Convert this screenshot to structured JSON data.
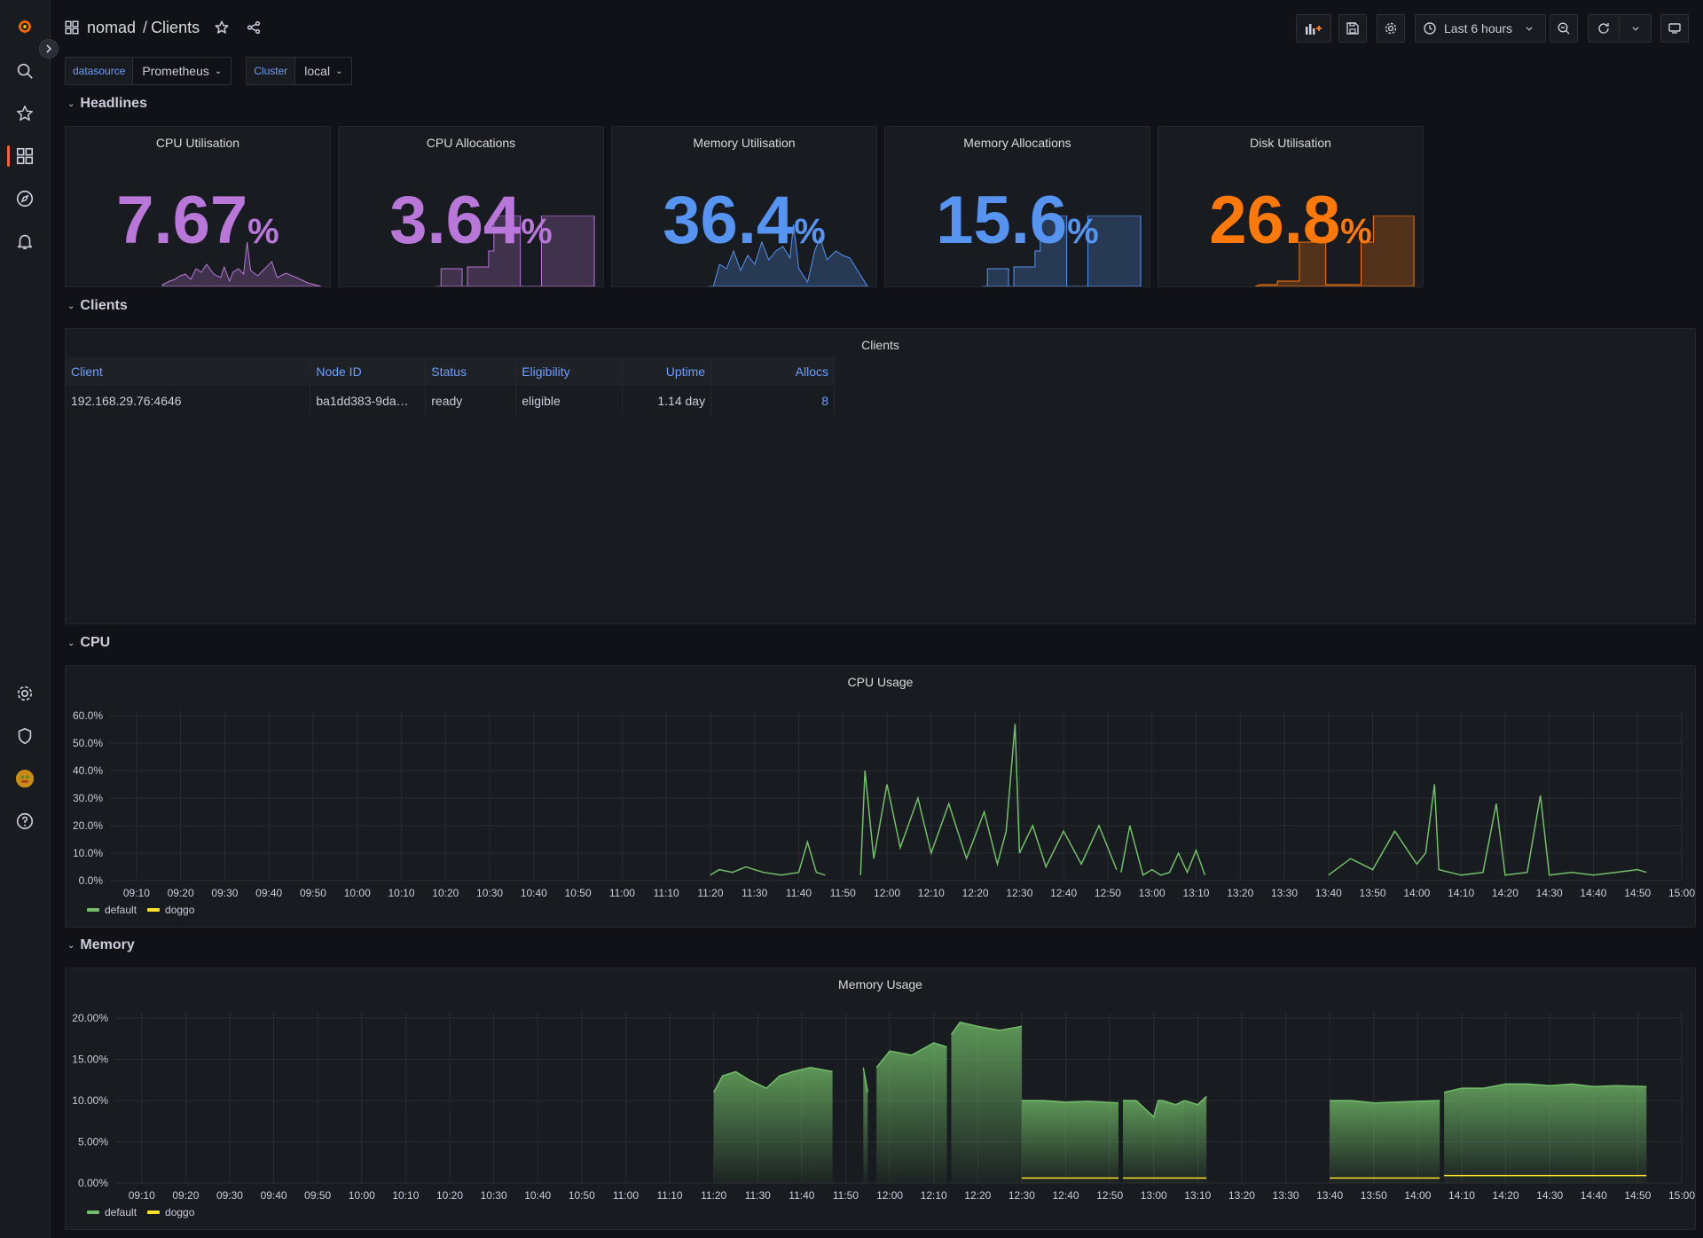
{
  "sidebar": {
    "icons": [
      "grafana-logo-icon",
      "search-icon",
      "star-icon",
      "dashboards-icon",
      "explore-icon",
      "alerting-icon",
      "configuration-icon",
      "shield-icon",
      "avatar",
      "help-icon"
    ]
  },
  "breadcrumb": {
    "folder": "nomad",
    "separator": "/",
    "title": "Clients"
  },
  "toolbar": {
    "time_range": "Last 6 hours"
  },
  "variables": [
    {
      "label": "datasource",
      "value": "Prometheus"
    },
    {
      "label": "Cluster",
      "value": "local"
    }
  ],
  "rows": {
    "headlines": "Headlines",
    "clients": "Clients",
    "cpu": "CPU",
    "memory": "Memory"
  },
  "stats": [
    {
      "title": "CPU Utilisation",
      "value": "7.67",
      "unit": "%",
      "color": "#b877d9"
    },
    {
      "title": "CPU Allocations",
      "value": "3.64",
      "unit": "%",
      "color": "#b877d9"
    },
    {
      "title": "Memory Utilisation",
      "value": "36.4",
      "unit": "%",
      "color": "#5794f2"
    },
    {
      "title": "Memory Allocations",
      "value": "15.6",
      "unit": "%",
      "color": "#5794f2"
    },
    {
      "title": "Disk Utilisation",
      "value": "26.8",
      "unit": "%",
      "color": "#ff780a"
    }
  ],
  "clients_table": {
    "title": "Clients",
    "columns": [
      "Client",
      "Node ID",
      "Status",
      "Eligibility",
      "Uptime",
      "Allocs"
    ],
    "rows": [
      [
        "192.168.29.76:4646",
        "ba1dd383-9da…",
        "ready",
        "eligible",
        "1.14 day",
        "8"
      ]
    ]
  },
  "chart_data": [
    {
      "type": "line",
      "title": "CPU Usage",
      "x_ticks": [
        "09:10",
        "09:20",
        "09:30",
        "09:40",
        "09:50",
        "10:00",
        "10:10",
        "10:20",
        "10:30",
        "10:40",
        "10:50",
        "11:00",
        "11:10",
        "11:20",
        "11:30",
        "11:40",
        "11:50",
        "12:00",
        "12:10",
        "12:20",
        "12:30",
        "12:40",
        "12:50",
        "13:00",
        "13:10",
        "13:20",
        "13:30",
        "13:40",
        "13:50",
        "14:00",
        "14:10",
        "14:20",
        "14:30",
        "14:40",
        "14:50",
        "15:00"
      ],
      "y_ticks": [
        "0.0%",
        "10.0%",
        "20.0%",
        "30.0%",
        "40.0%",
        "50.0%",
        "60.0%"
      ],
      "ylim": [
        0,
        60
      ],
      "series": [
        {
          "name": "default",
          "color": "#73bf69",
          "segments": [
            {
              "t": [
                "11:20",
                "11:22",
                "11:25",
                "11:28",
                "11:32",
                "11:36",
                "11:40",
                "11:42",
                "11:44",
                "11:46"
              ],
              "v": [
                2,
                4,
                3,
                5,
                3,
                2,
                3,
                14,
                3,
                2
              ]
            },
            {
              "t": [
                "11:54",
                "11:55",
                "11:57",
                "12:00",
                "12:03",
                "12:07",
                "12:10",
                "12:14",
                "12:18",
                "12:22",
                "12:25",
                "12:27",
                "12:29",
                "12:30",
                "12:33",
                "12:36",
                "12:40",
                "12:44",
                "12:48",
                "12:52"
              ],
              "v": [
                2,
                40,
                8,
                35,
                12,
                30,
                10,
                28,
                8,
                25,
                6,
                18,
                57,
                10,
                20,
                5,
                18,
                6,
                20,
                4
              ]
            },
            {
              "t": [
                "12:53",
                "12:55",
                "12:58",
                "13:00",
                "13:02",
                "13:04",
                "13:06",
                "13:08",
                "13:10",
                "13:12"
              ],
              "v": [
                3,
                20,
                2,
                4,
                2,
                3,
                10,
                3,
                11,
                2
              ]
            },
            {
              "t": [
                "13:40",
                "13:45",
                "13:50",
                "13:55",
                "14:00",
                "14:02",
                "14:04",
                "14:05",
                "14:10",
                "14:15",
                "14:18",
                "14:20",
                "14:25",
                "14:28",
                "14:30",
                "14:35",
                "14:40",
                "14:45",
                "14:50",
                "14:52"
              ],
              "v": [
                2,
                8,
                4,
                18,
                6,
                10,
                35,
                4,
                2,
                3,
                28,
                2,
                3,
                31,
                2,
                3,
                2,
                3,
                4,
                3
              ]
            }
          ]
        },
        {
          "name": "doggo",
          "color": "#fade2a",
          "segments": []
        }
      ]
    },
    {
      "type": "area",
      "title": "Memory Usage",
      "x_ticks": [
        "09:10",
        "09:20",
        "09:30",
        "09:40",
        "09:50",
        "10:00",
        "10:10",
        "10:20",
        "10:30",
        "10:40",
        "10:50",
        "11:00",
        "11:10",
        "11:20",
        "11:30",
        "11:40",
        "11:50",
        "12:00",
        "12:10",
        "12:20",
        "12:30",
        "12:40",
        "12:50",
        "13:00",
        "13:10",
        "13:20",
        "13:30",
        "13:40",
        "13:50",
        "14:00",
        "14:10",
        "14:20",
        "14:30",
        "14:40",
        "14:50",
        "15:00"
      ],
      "y_ticks": [
        "0.00%",
        "5.00%",
        "10.00%",
        "15.00%",
        "20.00%"
      ],
      "ylim": [
        0,
        20
      ],
      "series": [
        {
          "name": "default",
          "color": "#73bf69",
          "segments": [
            {
              "t": [
                "11:20",
                "11:22",
                "11:25",
                "11:28",
                "11:32",
                "11:35",
                "11:38",
                "11:42",
                "11:47"
              ],
              "v": [
                11,
                13,
                13.5,
                12.5,
                11.5,
                13,
                13.5,
                14,
                13.5
              ]
            },
            {
              "t": [
                "11:54",
                "11:55"
              ],
              "v": [
                14,
                11
              ]
            },
            {
              "t": [
                "11:57",
                "12:00",
                "12:05",
                "12:10",
                "12:13"
              ],
              "v": [
                14,
                16,
                15.5,
                17,
                16.5
              ]
            },
            {
              "t": [
                "12:14",
                "12:16",
                "12:20",
                "12:25",
                "12:30"
              ],
              "v": [
                18,
                19.5,
                19,
                18.5,
                19
              ]
            },
            {
              "t": [
                "12:30",
                "12:35",
                "12:40",
                "12:45",
                "12:52"
              ],
              "v": [
                10,
                10,
                9.8,
                9.9,
                9.7
              ]
            },
            {
              "t": [
                "12:53",
                "12:56",
                "13:00",
                "13:01",
                "13:02",
                "13:05",
                "13:07"
              ],
              "v": [
                10,
                10,
                8,
                10,
                10,
                9.5,
                10
              ]
            },
            {
              "t": [
                "13:07",
                "13:10",
                "13:12"
              ],
              "v": [
                10,
                9.5,
                10.5
              ]
            },
            {
              "t": [
                "13:40",
                "13:45",
                "13:50",
                "13:55",
                "14:00",
                "14:05"
              ],
              "v": [
                10,
                10,
                9.7,
                9.8,
                9.9,
                10
              ]
            },
            {
              "t": [
                "14:06",
                "14:10",
                "14:15",
                "14:20",
                "14:25",
                "14:30",
                "14:35",
                "14:40",
                "14:45",
                "14:52"
              ],
              "v": [
                11,
                11.5,
                11.5,
                12,
                12,
                11.8,
                12,
                11.7,
                11.8,
                11.7
              ]
            }
          ]
        },
        {
          "name": "doggo",
          "color": "#fade2a",
          "segments": [
            {
              "t": [
                "12:30",
                "12:52"
              ],
              "v": [
                0.6,
                0.6
              ]
            },
            {
              "t": [
                "12:53",
                "13:07"
              ],
              "v": [
                0.6,
                0.6
              ]
            },
            {
              "t": [
                "13:07",
                "13:12"
              ],
              "v": [
                0.6,
                0.6
              ]
            },
            {
              "t": [
                "13:40",
                "14:05"
              ],
              "v": [
                0.6,
                0.6
              ]
            },
            {
              "t": [
                "14:06",
                "14:52"
              ],
              "v": [
                0.9,
                0.9
              ]
            }
          ]
        }
      ]
    }
  ]
}
